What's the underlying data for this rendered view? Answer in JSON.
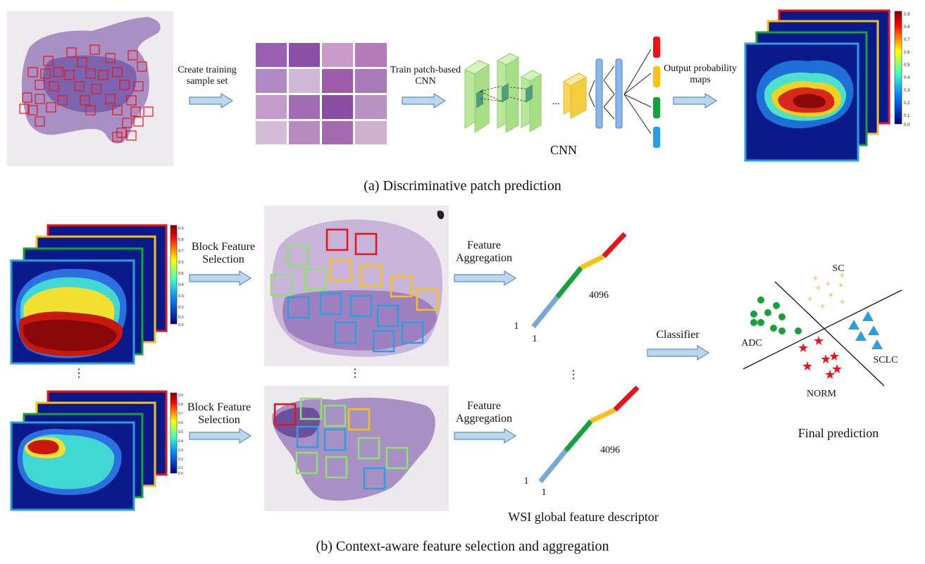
{
  "panel_a": {
    "caption": "(a)  Discriminative patch prediction",
    "step1_label": "Create training sample set",
    "step2_label": "Train patch-based CNN",
    "step3_label": "Output probability maps",
    "cnn_label": "CNN",
    "dots": "...",
    "colorbar_ticks": [
      "0.9",
      "0.8",
      "0.7",
      "0.6",
      "0.5",
      "0.4",
      "0.3",
      "0.2",
      "0.1",
      "0.0"
    ]
  },
  "panel_b": {
    "caption": "(b)  Context-aware feature selection and aggregation",
    "block_feature_selection": "Block Feature Selection",
    "feature_aggregation": "Feature Aggregation",
    "vector_length": "4096",
    "vector_one": "1",
    "ellipsis": "⋮",
    "descriptor_label": "WSI global feature descriptor",
    "classifier": "Classifier",
    "final_prediction": "Final prediction",
    "classes": {
      "adc": "ADC",
      "sc": "SC",
      "sclc": "SCLC",
      "norm": "NORM"
    }
  },
  "colors": {
    "arrow_fill": "#bcd6ee",
    "arrow_stroke": "#5b8ec2",
    "red": "#e8141b",
    "yellow": "#f6c21a",
    "green": "#15a23a",
    "blue": "#2a9fe0",
    "lightgreen": "#90e070",
    "vecblue": "#7aa7d6"
  }
}
